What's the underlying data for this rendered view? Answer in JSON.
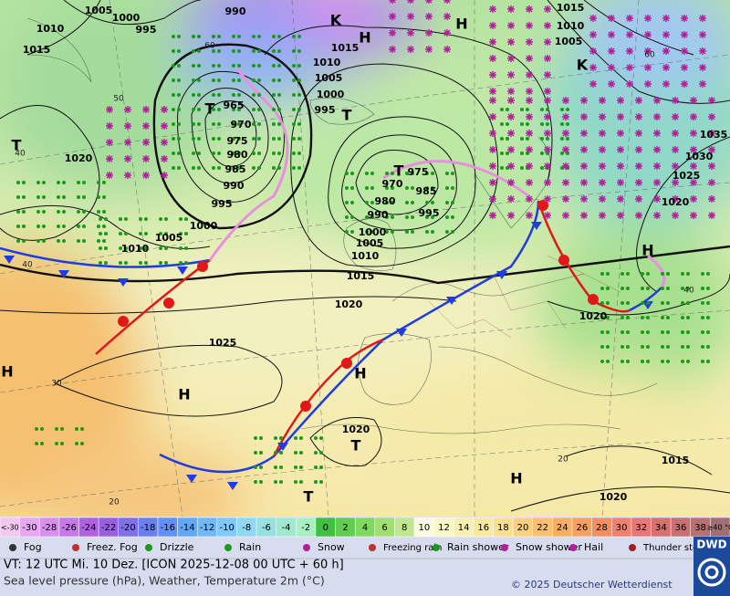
{
  "map": {
    "isobar_labels": [
      "1005",
      "1000",
      "995",
      "1010",
      "1015",
      "990",
      "1015",
      "1010",
      "1005",
      "1000",
      "995",
      "965",
      "970",
      "975",
      "980",
      "985",
      "990",
      "995",
      "1000",
      "1005",
      "1010",
      "1020",
      "975",
      "970",
      "985",
      "980",
      "995",
      "990",
      "1000",
      "1005",
      "1010",
      "1015",
      "1020",
      "1025",
      "1020",
      "1015",
      "1020",
      "1020",
      "1020",
      "1025",
      "1030",
      "1035",
      "1015",
      "1010",
      "1005"
    ],
    "pressure_centers": [
      "H",
      "H",
      "T",
      "T",
      "T",
      "H",
      "H",
      "H",
      "H",
      "H",
      "T",
      "T",
      "K",
      "K",
      "T"
    ],
    "latitude_labels": [
      "60",
      "60",
      "50",
      "40",
      "40",
      "30",
      "20",
      "40",
      "20"
    ]
  },
  "color_scale": {
    "labels": [
      "<-30",
      -30,
      -28,
      -26,
      -24,
      -22,
      -20,
      -18,
      -16,
      -14,
      -12,
      -10,
      -8,
      -6,
      -4,
      -2,
      0,
      2,
      4,
      6,
      8,
      10,
      12,
      14,
      16,
      18,
      20,
      22,
      24,
      26,
      28,
      30,
      32,
      34,
      36,
      38,
      "≥40 °C"
    ],
    "colors": [
      "#f0c8f0",
      "#e6a8f0",
      "#d890ec",
      "#c878e8",
      "#b060e0",
      "#9860e0",
      "#8070e8",
      "#6a80f0",
      "#6090f8",
      "#60a8f8",
      "#70b8f8",
      "#80c8f8",
      "#90d8f0",
      "#98e0e0",
      "#a0e8d0",
      "#a8f0c0",
      "#40c040",
      "#60cc50",
      "#80d860",
      "#a0e070",
      "#c0e890",
      "#fafae0",
      "#f8f8c8",
      "#f8f0b0",
      "#f8e8a0",
      "#f8e090",
      "#f8d080",
      "#f8c070",
      "#f8b060",
      "#f8a060",
      "#f49060",
      "#f08070",
      "#e87878",
      "#d87070",
      "#c87070",
      "#b87070",
      "#a07070"
    ]
  },
  "legend": [
    "Fog",
    "Freez. Fog",
    "Drizzle",
    "Rain",
    "Snow",
    "Freezing rain",
    "Rain shower",
    "Snow shower",
    "Hail",
    "Thunder storm"
  ],
  "footer": {
    "valid_time": "VT: 12 UTC Mi.  10 Dez. [ICON 2025-12-08  00 UTC + 60 h]",
    "description": "Sea level pressure (hPa), Weather, Temperature 2m (°C)",
    "copyright": "© 2025 Deutscher Wetterdienst",
    "logo": "DWD"
  }
}
